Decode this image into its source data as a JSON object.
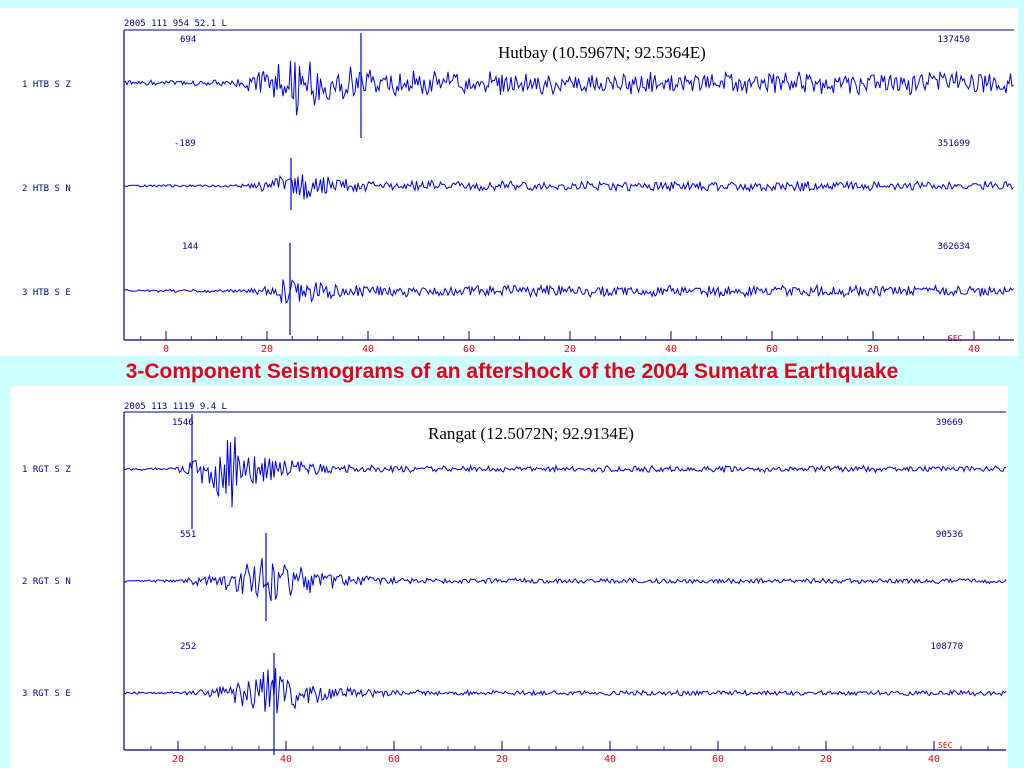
{
  "caption": "3-Component Seismograms of an aftershock of the 2004 Sumatra Earthquake",
  "colors": {
    "trace": "#0000e0",
    "frame": "#000080",
    "ticks": "#e8001a",
    "caption": "#e8001a",
    "background": "#ccffff"
  },
  "chart_data": [
    {
      "type": "line",
      "header": "2005   111   954  52.1  L",
      "title": "Hutbay (10.5967N; 92.5364E)",
      "x_unit": "SEC",
      "x_tick_labels": [
        "0",
        "20",
        "40",
        "60",
        "20",
        "40",
        "60",
        "20",
        "40"
      ],
      "series": [
        {
          "name": "1 HTB S  Z",
          "left_value": "694",
          "right_value": "137450"
        },
        {
          "name": "2 HTB S  N",
          "left_value": "-189",
          "right_value": "351699"
        },
        {
          "name": "3 HTB S  E",
          "left_value": "144",
          "right_value": "362634"
        }
      ]
    },
    {
      "type": "line",
      "header": "2005   113 1119   9.4  L",
      "title": "Rangat (12.5072N; 92.9134E)",
      "x_unit": "SEC",
      "x_tick_labels": [
        "20",
        "40",
        "60",
        "20",
        "40",
        "60",
        "20",
        "40"
      ],
      "series": [
        {
          "name": "1 RGT S  Z",
          "left_value": "1546",
          "right_value": "39669"
        },
        {
          "name": "2 RGT S  N",
          "left_value": "551",
          "right_value": "90536"
        },
        {
          "name": "3 RGT S  E",
          "left_value": "252",
          "right_value": "108770"
        }
      ]
    }
  ]
}
